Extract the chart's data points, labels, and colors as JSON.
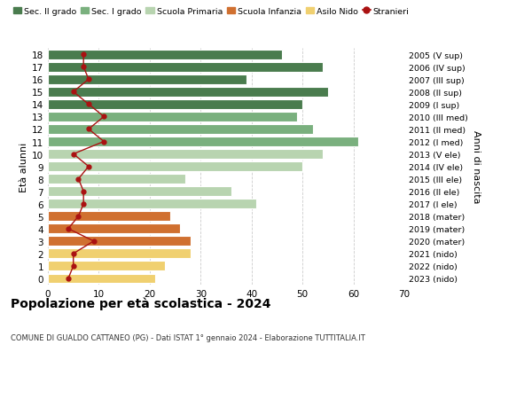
{
  "ages": [
    18,
    17,
    16,
    15,
    14,
    13,
    12,
    11,
    10,
    9,
    8,
    7,
    6,
    5,
    4,
    3,
    2,
    1,
    0
  ],
  "years": [
    "2005 (V sup)",
    "2006 (IV sup)",
    "2007 (III sup)",
    "2008 (II sup)",
    "2009 (I sup)",
    "2010 (III med)",
    "2011 (II med)",
    "2012 (I med)",
    "2013 (V ele)",
    "2014 (IV ele)",
    "2015 (III ele)",
    "2016 (II ele)",
    "2017 (I ele)",
    "2018 (mater)",
    "2019 (mater)",
    "2020 (mater)",
    "2021 (nido)",
    "2022 (nido)",
    "2023 (nido)"
  ],
  "bar_values": [
    46,
    54,
    39,
    55,
    50,
    49,
    52,
    61,
    54,
    50,
    27,
    36,
    41,
    24,
    26,
    28,
    28,
    23,
    21
  ],
  "stranieri": [
    7,
    7,
    8,
    5,
    8,
    11,
    8,
    11,
    5,
    8,
    6,
    7,
    7,
    6,
    4,
    9,
    5,
    5,
    4
  ],
  "bar_colors": [
    "#4a7c4e",
    "#4a7c4e",
    "#4a7c4e",
    "#4a7c4e",
    "#4a7c4e",
    "#7ab07e",
    "#7ab07e",
    "#7ab07e",
    "#b8d4b0",
    "#b8d4b0",
    "#b8d4b0",
    "#b8d4b0",
    "#b8d4b0",
    "#d07030",
    "#d07030",
    "#d07030",
    "#f0d070",
    "#f0d070",
    "#f0d070"
  ],
  "legend_labels": [
    "Sec. II grado",
    "Sec. I grado",
    "Scuola Primaria",
    "Scuola Infanzia",
    "Asilo Nido",
    "Stranieri"
  ],
  "legend_colors": [
    "#4a7c4e",
    "#7ab07e",
    "#b8d4b0",
    "#d07030",
    "#f0d070",
    "#aa1111"
  ],
  "title": "Popolazione per età scolastica - 2024",
  "subtitle": "COMUNE DI GUALDO CATTANEO (PG) - Dati ISTAT 1° gennaio 2024 - Elaborazione TUTTITALIA.IT",
  "ylabel_left": "Età alunni",
  "ylabel_right": "Anni di nascita",
  "xlim": [
    0,
    70
  ],
  "xticks": [
    0,
    10,
    20,
    30,
    40,
    50,
    60,
    70
  ],
  "background_color": "#ffffff",
  "grid_color": "#cccccc",
  "stranieri_color": "#aa1111"
}
